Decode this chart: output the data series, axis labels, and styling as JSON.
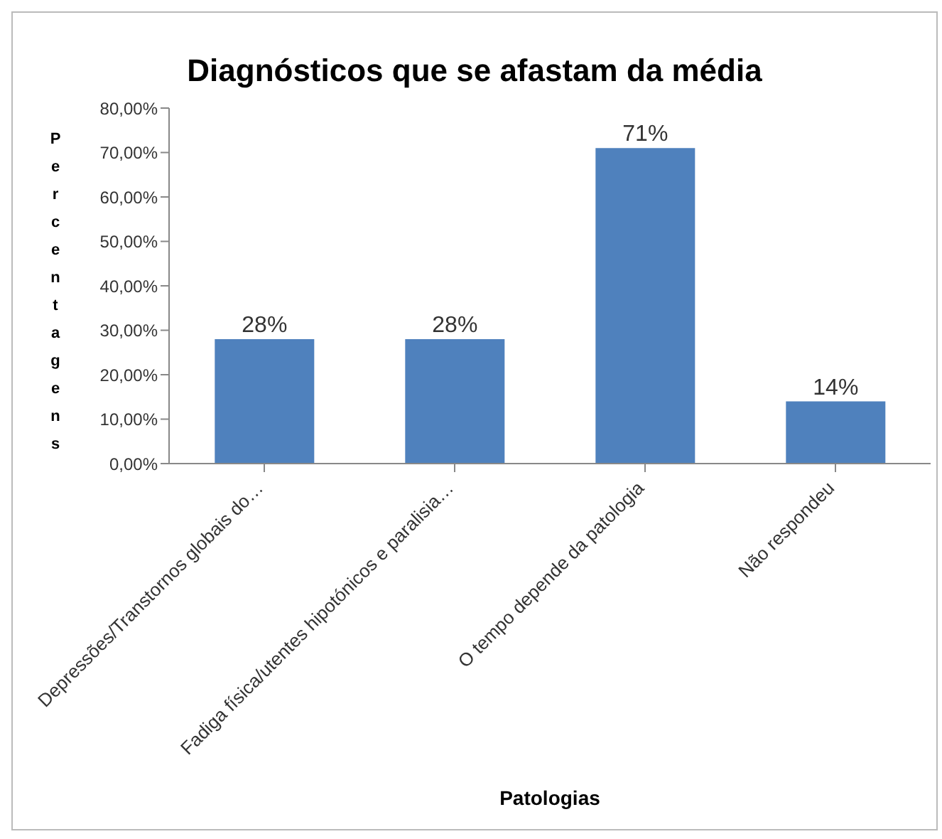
{
  "chart_data": {
    "type": "bar",
    "title": "Diagnósticos que se afastam da média",
    "xlabel": "Patologias",
    "ylabel": "Percentagens",
    "categories": [
      "Depressões/Transtornos globais do…",
      "Fadiga física/utentes hipotónicos e paralisia…",
      "O tempo depende da patologia",
      "Não respondeu"
    ],
    "values": [
      28,
      28,
      71,
      14
    ],
    "color": "#4f81bd",
    "value_labels": [
      "28%",
      "28%",
      "71%",
      "14%"
    ],
    "ylim": [
      0,
      80
    ],
    "yticks": [
      {
        "value": 0,
        "label": "0,00%"
      },
      {
        "value": 10,
        "label": "10,00%"
      },
      {
        "value": 20,
        "label": "20,00%"
      },
      {
        "value": 30,
        "label": "30,00%"
      },
      {
        "value": 40,
        "label": "40,00%"
      },
      {
        "value": 50,
        "label": "50,00%"
      },
      {
        "value": 60,
        "label": "60,00%"
      },
      {
        "value": 70,
        "label": "70,00%"
      },
      {
        "value": 80,
        "label": "80,00%"
      }
    ],
    "grid": false,
    "legend": false
  }
}
